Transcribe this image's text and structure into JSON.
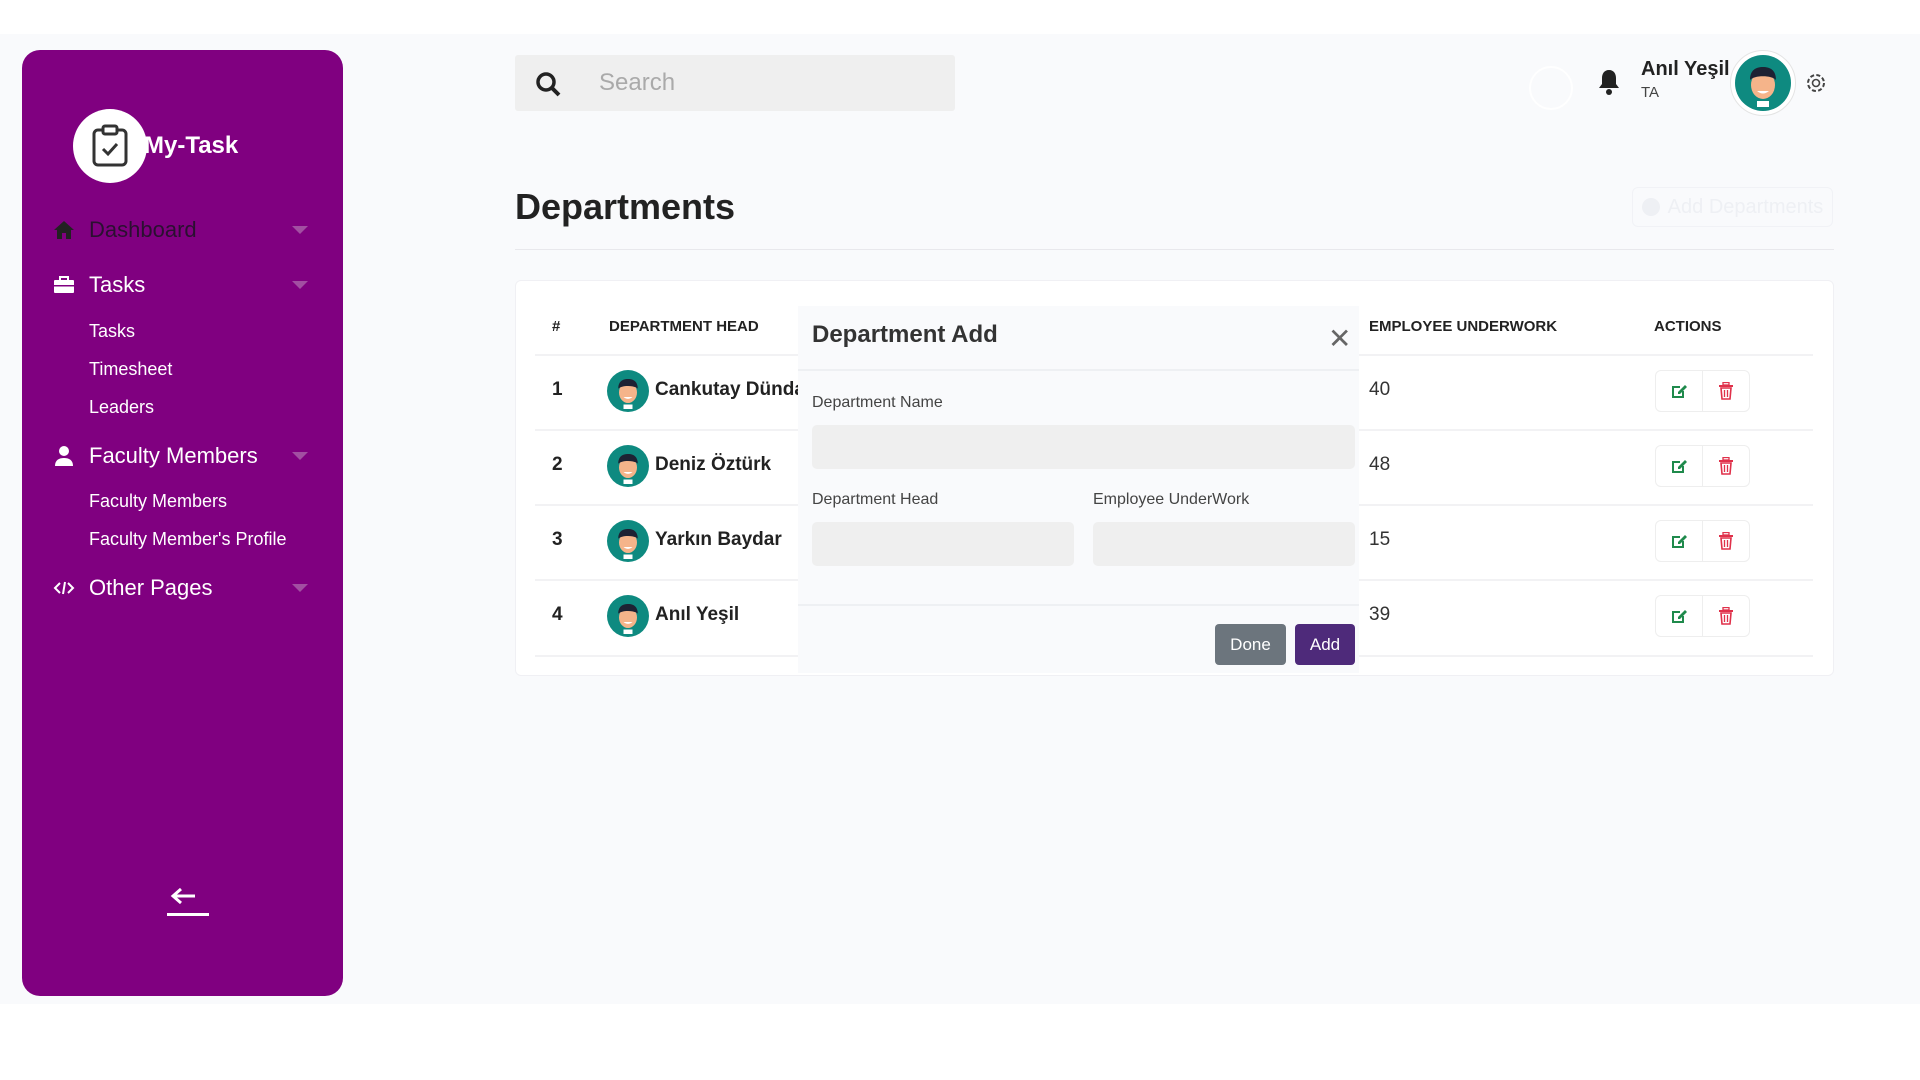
{
  "sidebar": {
    "brand": "My-Task",
    "items": [
      {
        "label": "Dashboard",
        "icon": "home-icon"
      },
      {
        "label": "Tasks",
        "icon": "briefcase-icon",
        "children": [
          "Tasks",
          "Timesheet",
          "Leaders"
        ]
      },
      {
        "label": "Faculty Members",
        "icon": "user-icon",
        "children": [
          "Faculty Members",
          "Faculty Member's Profile"
        ]
      },
      {
        "label": "Other Pages",
        "icon": "code-icon"
      }
    ]
  },
  "search": {
    "placeholder": "Search"
  },
  "user": {
    "name": "Anıl Yeşil",
    "role": "TA"
  },
  "page": {
    "title": "Departments",
    "add_button": "Add Departments"
  },
  "table": {
    "headers": [
      "#",
      "DEPARTMENT HEAD",
      "EMPLOYEE UNDERWORK",
      "ACTIONS"
    ],
    "rows": [
      {
        "no": "1",
        "head": "Cankutay Dünda",
        "employees": "40"
      },
      {
        "no": "2",
        "head": "Deniz Öztürk",
        "employees": "48"
      },
      {
        "no": "3",
        "head": "Yarkın Baydar",
        "employees": "15"
      },
      {
        "no": "4",
        "head": "Anıl Yeşil",
        "employees": "39"
      }
    ]
  },
  "modal": {
    "title": "Department Add",
    "name_label": "Department Name",
    "head_label": "Department Head",
    "employees_label": "Employee UnderWork",
    "name_value": "",
    "head_value": "",
    "employees_value": "",
    "done": "Done",
    "add": "Add"
  },
  "colors": {
    "sidebar": "#800080",
    "add_button": "#4e2a7a",
    "done_button": "#6c757d",
    "edit": "#1f8a4c",
    "delete": "#e0314a"
  }
}
